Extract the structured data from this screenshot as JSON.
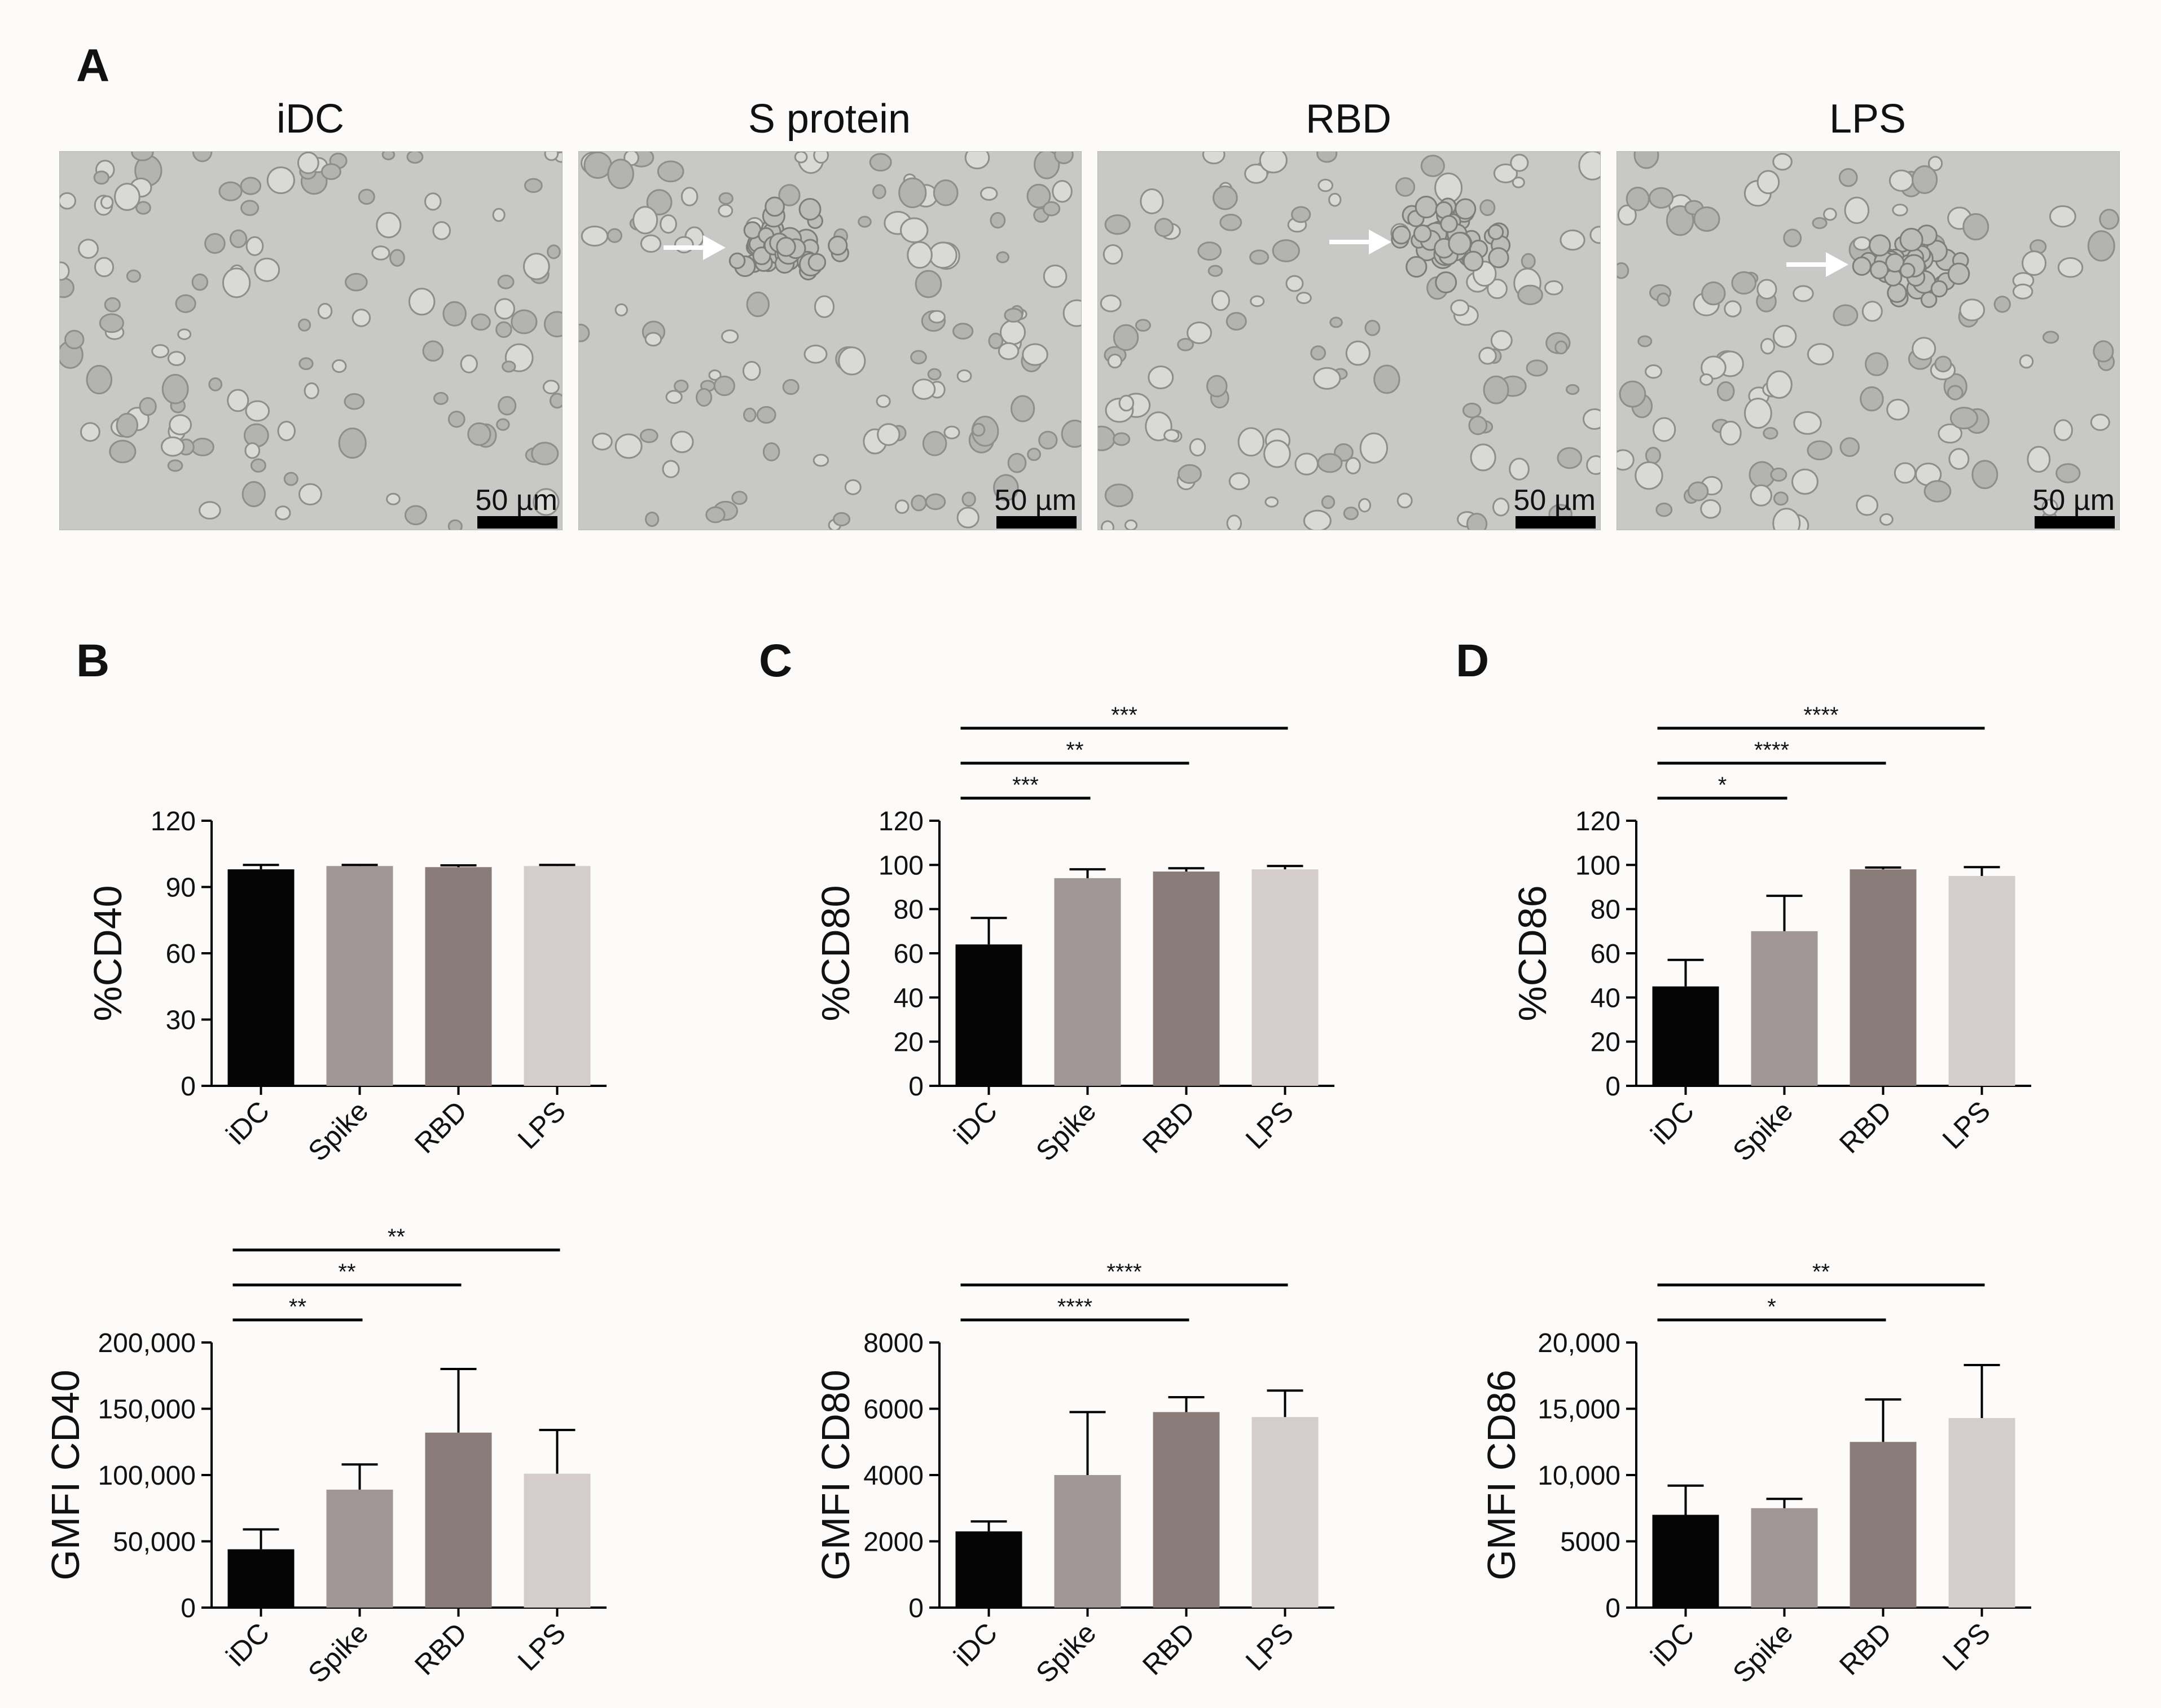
{
  "panel_a": {
    "letter": "A",
    "images": [
      {
        "title": "iDC",
        "scale": "50 µm",
        "arrow": false
      },
      {
        "title": "S protein",
        "scale": "50 µm",
        "arrow": true
      },
      {
        "title": "RBD",
        "scale": "50 µm",
        "arrow": true
      },
      {
        "title": "LPS",
        "scale": "50 µm",
        "arrow": true
      }
    ]
  },
  "letters": {
    "b": "B",
    "c": "C",
    "d": "D"
  },
  "bar_colors": [
    "#050505",
    "#a09697",
    "#8a7c79",
    "#d5cdcb"
  ],
  "chart_data": [
    {
      "type": "bar",
      "panel": "B",
      "ylabel": "%CD40",
      "categories": [
        "iDC",
        "Spike",
        "RBD",
        "LPS"
      ],
      "values": [
        98,
        99.5,
        99,
        99.5
      ],
      "errors": [
        2,
        0.5,
        0.8,
        0.5
      ],
      "ylim": [
        0,
        120
      ],
      "yticks": [
        0,
        30,
        60,
        90,
        120
      ],
      "ytick_labels": [
        "0",
        "30",
        "60",
        "90",
        "120"
      ],
      "significance": []
    },
    {
      "type": "bar",
      "panel": "C",
      "ylabel": "%CD80",
      "categories": [
        "iDC",
        "Spike",
        "RBD",
        "LPS"
      ],
      "values": [
        64,
        94,
        97,
        98
      ],
      "errors": [
        12,
        4,
        1.5,
        1.5
      ],
      "ylim": [
        0,
        120
      ],
      "yticks": [
        0,
        20,
        40,
        60,
        80,
        100,
        120
      ],
      "ytick_labels": [
        "0",
        "20",
        "40",
        "60",
        "80",
        "100",
        "120"
      ],
      "significance": [
        {
          "from": 0,
          "to": 1,
          "label": "***"
        },
        {
          "from": 0,
          "to": 2,
          "label": "**"
        },
        {
          "from": 0,
          "to": 3,
          "label": "***"
        }
      ]
    },
    {
      "type": "bar",
      "panel": "D",
      "ylabel": "%CD86",
      "categories": [
        "iDC",
        "Spike",
        "RBD",
        "LPS"
      ],
      "values": [
        45,
        70,
        98,
        95
      ],
      "errors": [
        12,
        16,
        0.8,
        4
      ],
      "ylim": [
        0,
        120
      ],
      "yticks": [
        0,
        20,
        40,
        60,
        80,
        100,
        120
      ],
      "ytick_labels": [
        "0",
        "20",
        "40",
        "60",
        "80",
        "100",
        "120"
      ],
      "significance": [
        {
          "from": 0,
          "to": 1,
          "label": "*"
        },
        {
          "from": 0,
          "to": 2,
          "label": "****"
        },
        {
          "from": 0,
          "to": 3,
          "label": "****"
        }
      ]
    },
    {
      "type": "bar",
      "panel": "B2",
      "ylabel": "GMFI CD40",
      "categories": [
        "iDC",
        "Spike",
        "RBD",
        "LPS"
      ],
      "values": [
        44000,
        89000,
        132000,
        101000
      ],
      "errors": [
        15000,
        19000,
        48000,
        33000
      ],
      "ylim": [
        0,
        200000
      ],
      "yticks": [
        0,
        50000,
        100000,
        150000,
        200000
      ],
      "ytick_labels": [
        "0",
        "50,000",
        "100,000",
        "150,000",
        "200,000"
      ],
      "significance": [
        {
          "from": 0,
          "to": 1,
          "label": "**"
        },
        {
          "from": 0,
          "to": 2,
          "label": "**"
        },
        {
          "from": 0,
          "to": 3,
          "label": "**"
        }
      ]
    },
    {
      "type": "bar",
      "panel": "C2",
      "ylabel": "GMFI CD80",
      "categories": [
        "iDC",
        "Spike",
        "RBD",
        "LPS"
      ],
      "values": [
        2300,
        4000,
        5900,
        5750
      ],
      "errors": [
        300,
        1900,
        450,
        800
      ],
      "ylim": [
        0,
        8000
      ],
      "yticks": [
        0,
        2000,
        4000,
        6000,
        8000
      ],
      "ytick_labels": [
        "0",
        "2000",
        "4000",
        "6000",
        "8000"
      ],
      "significance": [
        {
          "from": 0,
          "to": 2,
          "label": "****"
        },
        {
          "from": 0,
          "to": 3,
          "label": "****"
        }
      ]
    },
    {
      "type": "bar",
      "panel": "D2",
      "ylabel": "GMFI CD86",
      "categories": [
        "iDC",
        "Spike",
        "RBD",
        "LPS"
      ],
      "values": [
        7000,
        7500,
        12500,
        14300
      ],
      "errors": [
        2200,
        700,
        3200,
        4000
      ],
      "ylim": [
        0,
        20000
      ],
      "yticks": [
        0,
        5000,
        10000,
        15000,
        20000
      ],
      "ytick_labels": [
        "0",
        "5000",
        "10,000",
        "15,000",
        "20,000"
      ],
      "significance": [
        {
          "from": 0,
          "to": 2,
          "label": "*"
        },
        {
          "from": 0,
          "to": 3,
          "label": "**"
        }
      ]
    }
  ]
}
